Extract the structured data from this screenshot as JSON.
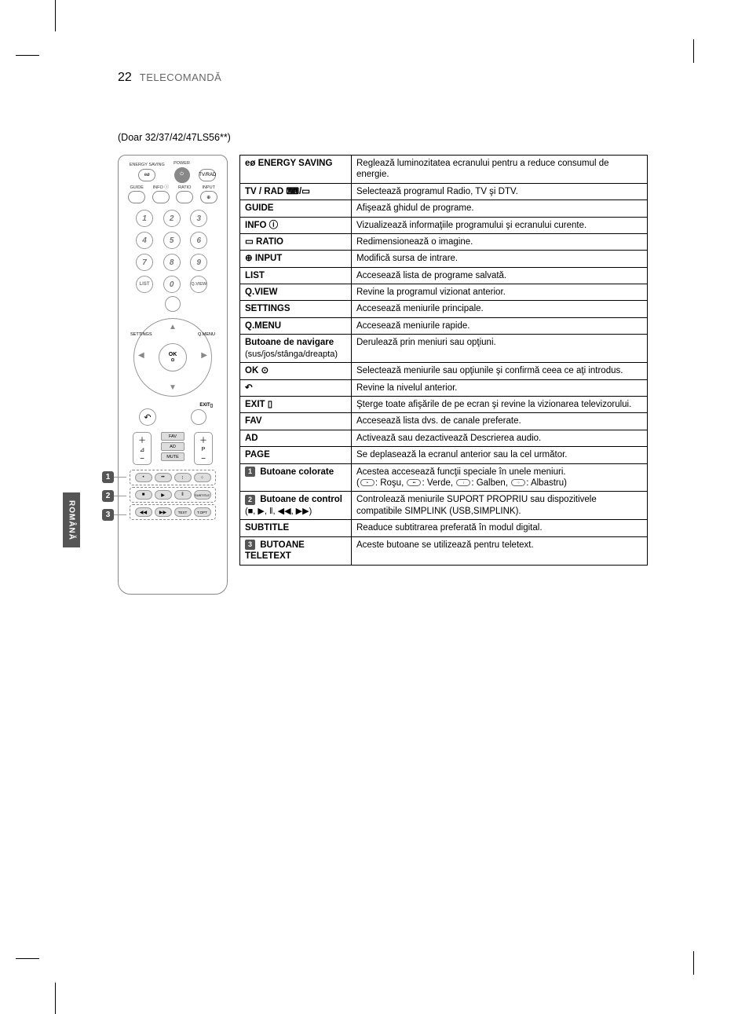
{
  "page_number": "22",
  "section_title": "TELECOMANDĂ",
  "model_note": "(Doar 32/37/42/47LS56**)",
  "language_tab": "ROMÂNĂ",
  "remote": {
    "top_labels": {
      "energy": "ENERGY SAVING",
      "power": "POWER",
      "tvrad": "TV/RAD"
    },
    "row2_labels": {
      "guide": "GUIDE",
      "info": "INFO ⓘ",
      "ratio": "RATIO",
      "input": "INPUT"
    },
    "numbers": [
      "1",
      "2",
      "3",
      "4",
      "5",
      "6",
      "7",
      "8",
      "9"
    ],
    "list": "LIST",
    "zero": "0",
    "qview": "Q.VIEW",
    "settings": "SETTINGS",
    "ok": "OK",
    "qmenu": "Q.MENU",
    "exit": "EXIT",
    "fav": "FAV",
    "ad": "AD",
    "mute": "MUTE",
    "p": "P",
    "subtitle_btn": "SUBTITLE",
    "text": "TEXT",
    "topt": "T.OPT"
  },
  "callouts": {
    "c1": "1",
    "c2": "2",
    "c3": "3"
  },
  "table": {
    "rows": [
      {
        "key": "eø ENERGY SAVING",
        "val": "Reglează luminozitatea ecranului pentru a reduce consumul de energie."
      },
      {
        "key": "TV / RAD ⌨/▭",
        "val": "Selectează programul Radio, TV şi DTV."
      },
      {
        "key": "GUIDE",
        "val": "Afişează ghidul de programe."
      },
      {
        "key": "INFO ⓘ",
        "val": "Vizualizează informaţiile programului şi ecranului curente."
      },
      {
        "key": "▭ RATIO",
        "val": "Redimensionează o imagine."
      },
      {
        "key": "⊕ INPUT",
        "val": "Modifică sursa de intrare."
      },
      {
        "key": "LIST",
        "val": "Accesează lista de programe salvată."
      },
      {
        "key": "Q.VIEW",
        "val": "Revine la programul vizionat anterior."
      },
      {
        "key": "SETTINGS",
        "val": "Accesează meniurile principale."
      },
      {
        "key": "Q.MENU",
        "val": "Accesează meniurile rapide."
      },
      {
        "key_html": "nav",
        "key": "Butoane de navigare",
        "key_sub": "(sus/jos/stânga/dreapta)",
        "val": "Derulează prin meniuri sau opţiuni."
      },
      {
        "key": "OK ⊙",
        "val": "Selectează meniurile sau opţiunile şi confirmă ceea ce aţi introdus."
      },
      {
        "key": "↶",
        "val": "Revine la nivelul anterior."
      },
      {
        "key": "EXIT ▯",
        "val": "Şterge toate afişările de pe ecran şi revine la vizionarea televizorului."
      },
      {
        "key": "FAV",
        "val": "Accesează lista dvs. de canale preferate."
      },
      {
        "key": "AD",
        "val": "Activează sau dezactivează Descrierea audio."
      },
      {
        "key": "PAGE",
        "val": "Se deplasează la ecranul anterior sau la cel următor."
      },
      {
        "key_html": "color",
        "num": "1",
        "key": "Butoane colorate",
        "val_html": "color"
      },
      {
        "key_html": "ctrl",
        "num": "2",
        "key": "Butoane de control",
        "key_sub": "(■, ▶, ‖, ◀◀, ▶▶)",
        "val": "Controlează meniurile SUPORT PROPRIU sau dispozitivele compatibile SIMPLINK (USB,SIMPLINK)."
      },
      {
        "key": "SUBTITLE",
        "val": "Readuce subtitrarea preferată în modul digital."
      },
      {
        "key_html": "ttx",
        "num": "3",
        "key": "BUTOANE TELETEXT",
        "val": "Aceste butoane se utilizează pentru teletext."
      }
    ],
    "color_val": {
      "line1": "Acestea accesează funcţii speciale în unele meniuri.",
      "red": ": Roşu,",
      "green": ": Verde,",
      "yellow": ": Galben,",
      "blue": ": Albastru)"
    }
  },
  "colors": {
    "text": "#000000",
    "header_gray": "#666666",
    "border": "#000000",
    "remote_border": "#888888",
    "callout_bg": "#555555",
    "tab_bg": "#555555"
  },
  "typography": {
    "body_size_pt": 10,
    "pagenum_size_pt": 12,
    "table_size_pt": 9,
    "font_family": "Arial"
  }
}
